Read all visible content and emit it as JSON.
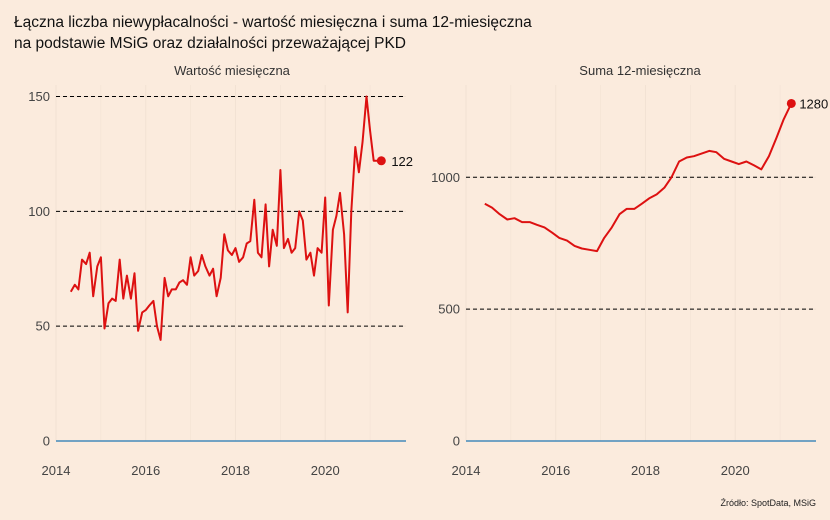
{
  "title_line1": "Łączna liczba niewypłacalności - wartość miesięczna i suma 12-miesięczna",
  "title_line2": "na podstawie MSiG oraz działalności przeważającej PKD",
  "source": "Źródło: SpotData, MSiG",
  "colors": {
    "background": "#fbebdd",
    "line": "#dd1111",
    "zero_line": "#1f77b4",
    "ref_line": "#000000",
    "grid": "#f2e2d4"
  },
  "chart_data": [
    {
      "type": "line",
      "title": "Wartość miesięczna",
      "xlim": [
        2014.0,
        2021.8
      ],
      "ylim": [
        0,
        155
      ],
      "xticks": [
        2014,
        2016,
        2018,
        2020
      ],
      "xtick_labels": [
        "2014",
        "2016",
        "2018",
        "2020"
      ],
      "yticks": [
        0,
        50,
        100,
        150
      ],
      "ytick_labels": [
        "0",
        "50",
        "100",
        "150"
      ],
      "reference_lines": [
        50,
        100,
        150
      ],
      "grid": true,
      "last_value_label": "122",
      "series": [
        {
          "x": [
            2014.33,
            2014.42,
            2014.5,
            2014.58,
            2014.67,
            2014.75,
            2014.83,
            2014.92,
            2015.0,
            2015.08,
            2015.17,
            2015.25,
            2015.33,
            2015.42,
            2015.5,
            2015.58,
            2015.67,
            2015.75,
            2015.83,
            2015.92,
            2016.0,
            2016.08,
            2016.17,
            2016.25,
            2016.33,
            2016.42,
            2016.5,
            2016.58,
            2016.67,
            2016.75,
            2016.83,
            2016.92,
            2017.0,
            2017.08,
            2017.17,
            2017.25,
            2017.33,
            2017.42,
            2017.5,
            2017.58,
            2017.67,
            2017.75,
            2017.83,
            2017.92,
            2018.0,
            2018.08,
            2018.17,
            2018.25,
            2018.33,
            2018.42,
            2018.5,
            2018.58,
            2018.67,
            2018.75,
            2018.83,
            2018.92,
            2019.0,
            2019.08,
            2019.17,
            2019.25,
            2019.33,
            2019.42,
            2019.5,
            2019.58,
            2019.67,
            2019.75,
            2019.83,
            2019.92,
            2020.0,
            2020.08,
            2020.17,
            2020.25,
            2020.33,
            2020.42,
            2020.5,
            2020.58,
            2020.67,
            2020.75,
            2020.83,
            2020.92,
            2021.0,
            2021.08,
            2021.17,
            2021.25
          ],
          "y": [
            65,
            68,
            66,
            79,
            77,
            82,
            63,
            76,
            80,
            49,
            60,
            62,
            61,
            79,
            62,
            72,
            62,
            73,
            48,
            56,
            57,
            59,
            61,
            50,
            44,
            71,
            63,
            66,
            66,
            69,
            70,
            68,
            80,
            72,
            74,
            81,
            76,
            72,
            75,
            63,
            71,
            90,
            83,
            81,
            84,
            78,
            80,
            86,
            87,
            105,
            82,
            80,
            103,
            76,
            92,
            85,
            118,
            84,
            88,
            82,
            84,
            100,
            96,
            79,
            82,
            72,
            84,
            82,
            106,
            59,
            92,
            98,
            108,
            90,
            56,
            100,
            128,
            117,
            130,
            150,
            135,
            122,
            122,
            122
          ]
        }
      ]
    },
    {
      "type": "line",
      "title": "Suma 12-miesięczna",
      "xlim": [
        2014.0,
        2021.8
      ],
      "ylim": [
        0,
        1350
      ],
      "xticks": [
        2014,
        2016,
        2018,
        2020
      ],
      "xtick_labels": [
        "2014",
        "2016",
        "2018",
        "2020"
      ],
      "yticks": [
        0,
        500,
        1000
      ],
      "ytick_labels": [
        "0",
        "500",
        "1000"
      ],
      "reference_lines": [
        500,
        1000
      ],
      "grid": true,
      "last_value_label": "1280",
      "series": [
        {
          "x": [
            2014.42,
            2014.58,
            2014.75,
            2014.92,
            2015.08,
            2015.25,
            2015.42,
            2015.58,
            2015.75,
            2015.92,
            2016.08,
            2016.25,
            2016.42,
            2016.58,
            2016.75,
            2016.92,
            2017.08,
            2017.25,
            2017.42,
            2017.58,
            2017.75,
            2017.92,
            2018.08,
            2018.25,
            2018.42,
            2018.58,
            2018.75,
            2018.92,
            2019.08,
            2019.25,
            2019.42,
            2019.58,
            2019.75,
            2019.92,
            2020.08,
            2020.25,
            2020.42,
            2020.58,
            2020.75,
            2020.92,
            2021.08,
            2021.25
          ],
          "y": [
            900,
            885,
            860,
            840,
            845,
            830,
            830,
            820,
            810,
            790,
            770,
            760,
            740,
            730,
            725,
            720,
            770,
            810,
            860,
            880,
            880,
            900,
            920,
            935,
            960,
            1000,
            1060,
            1075,
            1080,
            1090,
            1100,
            1095,
            1070,
            1060,
            1050,
            1060,
            1045,
            1030,
            1080,
            1150,
            1220,
            1280
          ]
        }
      ]
    }
  ]
}
